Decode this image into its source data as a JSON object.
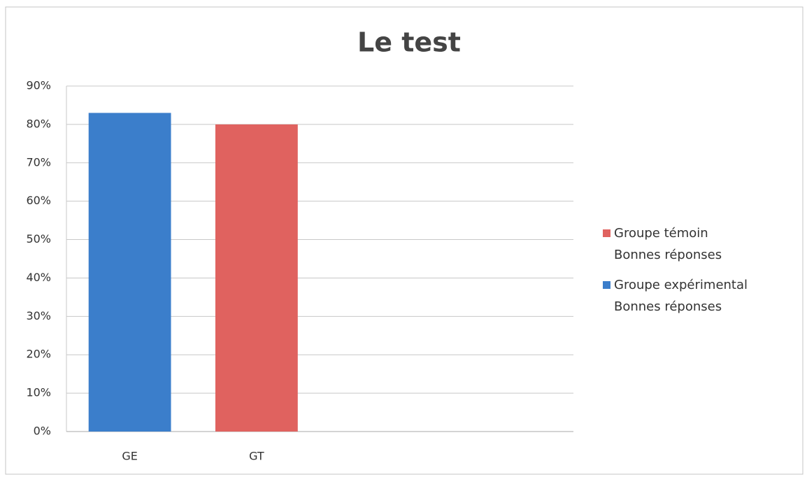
{
  "chart_data": {
    "type": "bar",
    "title": "Le test",
    "categories": [
      "GE",
      "GT",
      null,
      null
    ],
    "series": [
      {
        "name": "Groupe expérimental\nBonnes réponses",
        "color": "#3b7ecb",
        "values": [
          83,
          null,
          null,
          null
        ]
      },
      {
        "name": "Groupe témoin\nBonnes réponses",
        "color": "#e0625f",
        "values": [
          null,
          80,
          null,
          null
        ]
      }
    ],
    "ylim": [
      0,
      90
    ],
    "yticks": [
      {
        "value": 0,
        "label": "0%"
      },
      {
        "value": 10,
        "label": "10%"
      },
      {
        "value": 20,
        "label": "20%"
      },
      {
        "value": 30,
        "label": "30%"
      },
      {
        "value": 40,
        "label": "40%"
      },
      {
        "value": 50,
        "label": "50%"
      },
      {
        "value": 60,
        "label": "60%"
      },
      {
        "value": 70,
        "label": "70%"
      },
      {
        "value": 80,
        "label": "80%"
      },
      {
        "value": 90,
        "label": "90%"
      }
    ],
    "grid": true,
    "legend": "right"
  }
}
